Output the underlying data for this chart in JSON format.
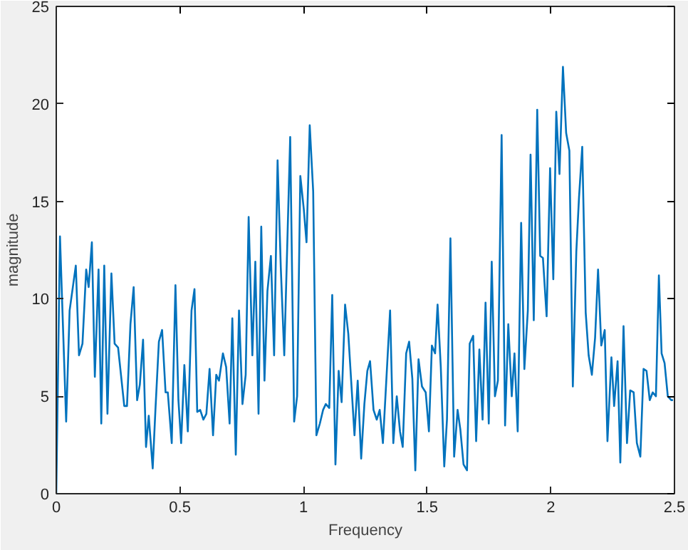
{
  "chart_data": {
    "type": "line",
    "xlabel": "Frequency",
    "ylabel": "magnitude",
    "xlim": [
      0,
      2.5
    ],
    "ylim": [
      0,
      25
    ],
    "xticks": [
      0,
      0.5,
      1,
      1.5,
      2,
      2.5
    ],
    "yticks": [
      0,
      5,
      10,
      15,
      20,
      25
    ],
    "grid": false,
    "line_style": "solid",
    "x": [
      0,
      0.015,
      0.04,
      0.054,
      0.079,
      0.092,
      0.106,
      0.121,
      0.131,
      0.144,
      0.156,
      0.171,
      0.182,
      0.194,
      0.207,
      0.223,
      0.236,
      0.25,
      0.275,
      0.286,
      0.3,
      0.313,
      0.327,
      0.338,
      0.351,
      0.363,
      0.374,
      0.39,
      0.401,
      0.415,
      0.428,
      0.442,
      0.451,
      0.467,
      0.482,
      0.494,
      0.505,
      0.518,
      0.532,
      0.547,
      0.559,
      0.57,
      0.582,
      0.595,
      0.607,
      0.62,
      0.634,
      0.647,
      0.658,
      0.674,
      0.687,
      0.701,
      0.712,
      0.726,
      0.739,
      0.753,
      0.766,
      0.778,
      0.793,
      0.805,
      0.818,
      0.829,
      0.842,
      0.854,
      0.868,
      0.881,
      0.895,
      0.908,
      0.922,
      0.946,
      0.962,
      0.974,
      0.987,
      1.001,
      1.012,
      1.025,
      1.039,
      1.052,
      1.066,
      1.079,
      1.09,
      1.104,
      1.116,
      1.129,
      1.142,
      1.154,
      1.168,
      1.181,
      1.206,
      1.219,
      1.233,
      1.246,
      1.258,
      1.269,
      1.283,
      1.296,
      1.308,
      1.321,
      1.35,
      1.363,
      1.377,
      1.39,
      1.401,
      1.415,
      1.427,
      1.44,
      1.452,
      1.465,
      1.479,
      1.494,
      1.507,
      1.519,
      1.532,
      1.542,
      1.555,
      1.569,
      1.58,
      1.594,
      1.609,
      1.623,
      1.634,
      1.647,
      1.661,
      1.672,
      1.686,
      1.698,
      1.711,
      1.724,
      1.736,
      1.749,
      1.761,
      1.774,
      1.786,
      1.801,
      1.815,
      1.828,
      1.842,
      1.853,
      1.866,
      1.88,
      1.893,
      1.907,
      1.918,
      1.931,
      1.945,
      1.957,
      1.968,
      1.983,
      1.997,
      2.01,
      2.022,
      2.035,
      2.049,
      2.062,
      2.075,
      2.089,
      2.103,
      2.114,
      2.127,
      2.141,
      2.153,
      2.166,
      2.179,
      2.191,
      2.204,
      2.218,
      2.229,
      2.245,
      2.256,
      2.27,
      2.281,
      2.294,
      2.308,
      2.321,
      2.335,
      2.348,
      2.362,
      2.375,
      2.387,
      2.4,
      2.412,
      2.425,
      2.437,
      2.448,
      2.46,
      2.473,
      2.487,
      2.494
    ],
    "series": [
      {
        "color": "#0072bd",
        "values": [
          0,
          13.2,
          3.7,
          9.4,
          11.7,
          7.1,
          7.7,
          11.5,
          10.6,
          12.9,
          6.0,
          11.5,
          3.6,
          11.7,
          4.1,
          11.3,
          7.7,
          7.5,
          4.5,
          4.5,
          8.7,
          10.6,
          4.8,
          5.6,
          7.9,
          2.4,
          4.0,
          1.3,
          4.3,
          7.8,
          8.4,
          5.2,
          5.2,
          2.6,
          10.7,
          4.8,
          2.6,
          6.6,
          3.2,
          9.4,
          10.5,
          4.2,
          4.3,
          3.8,
          4.1,
          6.4,
          3.0,
          6.1,
          5.8,
          7.2,
          6.5,
          3.6,
          9.0,
          2.0,
          9.4,
          4.6,
          6.1,
          14.2,
          7.1,
          11.9,
          4.1,
          13.7,
          5.8,
          10.4,
          12.2,
          7.1,
          17.1,
          11.6,
          7.1,
          18.3,
          3.7,
          5.0,
          16.3,
          14.6,
          12.9,
          18.9,
          15.5,
          3.0,
          3.6,
          4.3,
          4.6,
          4.4,
          10.2,
          1.5,
          6.3,
          4.7,
          9.7,
          8.2,
          3.0,
          5.8,
          1.8,
          4.6,
          6.3,
          6.8,
          4.3,
          3.8,
          4.3,
          2.6,
          9.4,
          2.6,
          5.0,
          3.2,
          2.4,
          7.2,
          7.8,
          5.9,
          1.2,
          6.9,
          5.5,
          5.2,
          3.2,
          7.6,
          7.2,
          9.7,
          6.5,
          1.4,
          3.8,
          13.1,
          1.9,
          4.3,
          3.3,
          1.5,
          1.2,
          7.7,
          8.1,
          2.7,
          7.4,
          3.8,
          9.8,
          3.6,
          11.9,
          5.0,
          5.8,
          18.4,
          3.5,
          8.7,
          5.0,
          7.2,
          3.2,
          13.9,
          6.4,
          9.4,
          17.4,
          8.9,
          19.7,
          12.2,
          12.1,
          9.1,
          16.7,
          11.0,
          19.6,
          16.4,
          21.9,
          18.5,
          17.6,
          5.5,
          12.4,
          15.2,
          17.8,
          9.3,
          7.1,
          6.1,
          8.0,
          11.5,
          7.6,
          8.4,
          2.7,
          7.0,
          4.5,
          6.8,
          1.6,
          8.6,
          2.6,
          5.3,
          5.2,
          2.6,
          1.9,
          6.4,
          6.3,
          4.8,
          5.2,
          5.0,
          11.2,
          7.2,
          6.7,
          5.0,
          4.8,
          4.8
        ]
      }
    ]
  }
}
